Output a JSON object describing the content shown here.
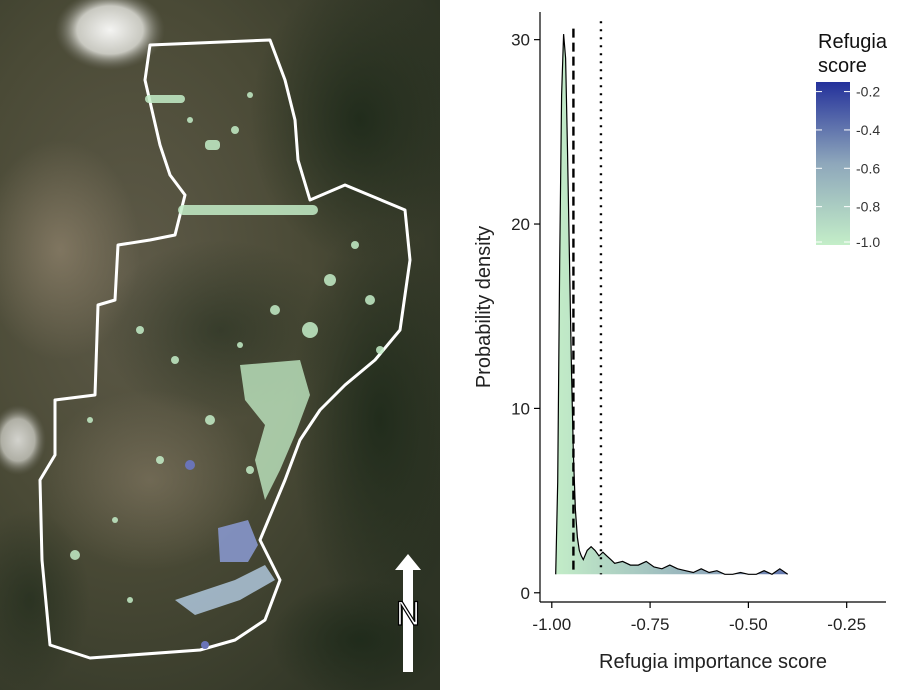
{
  "map": {
    "north_label": "N"
  },
  "chart_data": {
    "type": "area",
    "title": "",
    "xlabel": "Refugia importance score",
    "ylabel": "Probability density",
    "xlim": [
      -1.03,
      -0.15
    ],
    "ylim": [
      -0.5,
      31.5
    ],
    "x_ticks": [
      -1.0,
      -0.75,
      -0.5,
      -0.25
    ],
    "x_tick_labels": [
      "-1.00",
      "-0.75",
      "-0.50",
      "-0.25"
    ],
    "y_ticks": [
      0,
      10,
      20,
      30
    ],
    "y_tick_labels": [
      "0",
      "10",
      "20",
      "30"
    ],
    "series": [
      {
        "name": "density",
        "x": [
          -0.99,
          -0.985,
          -0.98,
          -0.975,
          -0.97,
          -0.965,
          -0.96,
          -0.955,
          -0.95,
          -0.945,
          -0.94,
          -0.935,
          -0.93,
          -0.925,
          -0.92,
          -0.91,
          -0.9,
          -0.89,
          -0.88,
          -0.87,
          -0.86,
          -0.85,
          -0.84,
          -0.82,
          -0.8,
          -0.78,
          -0.76,
          -0.74,
          -0.72,
          -0.7,
          -0.68,
          -0.66,
          -0.64,
          -0.62,
          -0.6,
          -0.58,
          -0.56,
          -0.54,
          -0.52,
          -0.5,
          -0.48,
          -0.46,
          -0.44,
          -0.42,
          -0.4
        ],
        "y": [
          1.0,
          6.0,
          18.0,
          27.0,
          30.3,
          29.0,
          24.0,
          18.0,
          12.0,
          7.5,
          4.5,
          3.0,
          2.3,
          2.0,
          1.8,
          2.3,
          2.5,
          2.3,
          2.0,
          2.2,
          2.0,
          1.8,
          1.6,
          1.7,
          1.5,
          1.5,
          1.7,
          1.4,
          1.3,
          1.5,
          1.3,
          1.2,
          1.1,
          1.3,
          1.1,
          1.2,
          1.0,
          1.0,
          1.1,
          1.0,
          1.0,
          1.2,
          1.0,
          1.3,
          1.0
        ]
      }
    ],
    "vlines": [
      {
        "x": -0.945,
        "style": "dashed"
      },
      {
        "x": -0.875,
        "style": "dotted"
      }
    ],
    "legend": {
      "title_line1": "Refugia",
      "title_line2": "score",
      "position": "top-right",
      "tick_values": [
        -0.2,
        -0.4,
        -0.6,
        -0.8,
        -1.0
      ],
      "tick_labels": [
        "-0.2",
        "-0.4",
        "-0.6",
        "-0.8",
        "-1.0"
      ],
      "range": [
        -1.0,
        -0.15
      ]
    },
    "colors": {
      "low": "#c4eec8",
      "mid": "#8ea7bb",
      "high": "#24319b"
    }
  }
}
